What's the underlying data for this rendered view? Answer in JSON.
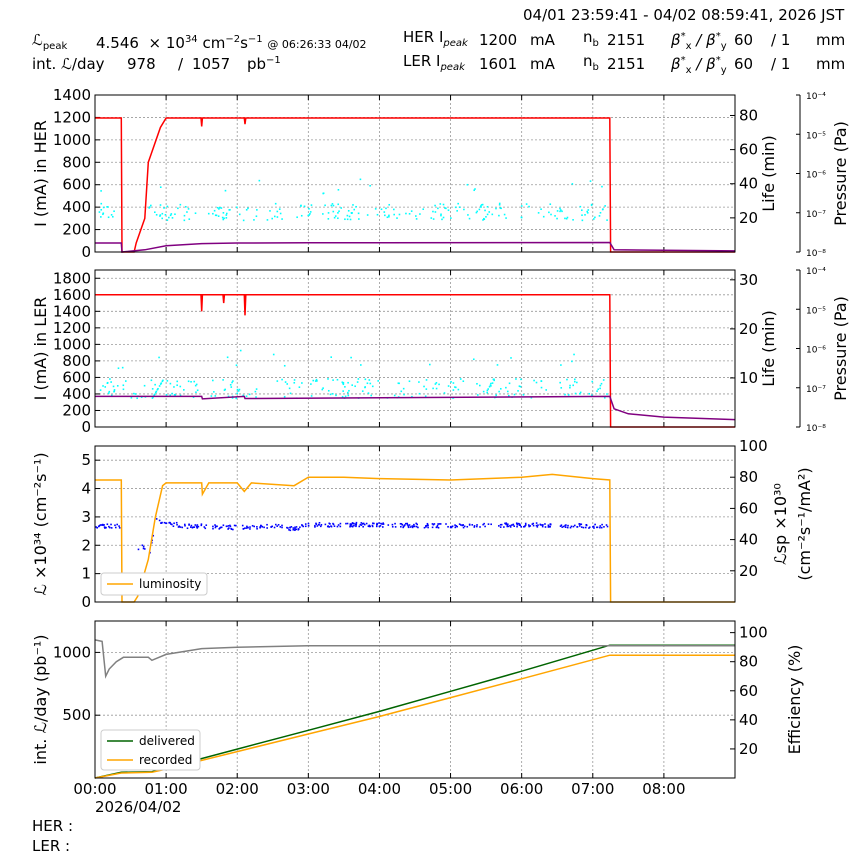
{
  "header": {
    "time_range": "04/01 23:59:41 - 04/02 08:59:41, 2026 JST",
    "lpeak_label": "ℒ",
    "lpeak_sub": "peak",
    "lpeak_value": "4.546",
    "lpeak_mult": "× 10",
    "lpeak_exp": "34",
    "lpeak_unit": "cm",
    "lpeak_unit_exp1": "−2",
    "lpeak_unit2": "s",
    "lpeak_unit_exp2": "−1",
    "lpeak_time": "@ 06:26:33 04/02",
    "intl_label": "int. ℒ/day",
    "intl_value1": "978",
    "intl_sep": "/",
    "intl_value2": "1057",
    "intl_unit": "pb",
    "intl_unit_exp": "−1",
    "her_label": "HER I",
    "her_sub": "peak",
    "her_value": "1200",
    "her_unit": "mA",
    "nb_label": "n",
    "nb_sub": "b",
    "her_nb": "2151",
    "beta_label": "β",
    "beta_sep": "/ β",
    "her_beta_x": "60",
    "her_beta_y": "/ 1",
    "beta_unit": "mm",
    "ler_label": "LER I",
    "ler_sub": "peak",
    "ler_value": "1601",
    "ler_unit": "mA",
    "ler_nb": "2151",
    "ler_beta_x": "60",
    "ler_beta_y": "/ 1"
  },
  "footer": {
    "her": "HER :",
    "ler": "LER :"
  },
  "colors": {
    "current": "#ff0000",
    "life": "#00ffff",
    "pressure": "#800080",
    "luminosity": "#ffa500",
    "specific": "#0000ff",
    "delivered": "#006400",
    "recorded": "#ffa500",
    "efficiency": "#808080"
  },
  "chart_data": [
    {
      "type": "line",
      "ylabel": "I (mA) in HER",
      "ylabel_right": "Life (min)",
      "ylabel_right2": "Pressure (Pa)",
      "ylim": [
        0,
        1400
      ],
      "yticks": [
        "0",
        "200",
        "400",
        "600",
        "800",
        "1000",
        "1200",
        "1400"
      ],
      "ylim_right": [
        0,
        92
      ],
      "yticks_right": [
        "20",
        "40",
        "60",
        "80"
      ],
      "pressure_ticks": [
        "10⁻⁸",
        "10⁻⁷",
        "10⁻⁶",
        "10⁻⁵",
        "10⁻⁴"
      ],
      "series": [
        {
          "key": "current",
          "x": [
            0,
            0.37,
            0.38,
            0.55,
            0.58,
            0.7,
            0.75,
            0.92,
            1.0,
            1.1,
            1.49,
            1.5,
            1.51,
            2.1,
            2.11,
            2.12,
            7.24,
            7.25,
            9.0
          ],
          "y": [
            1195,
            1195,
            0,
            0,
            80,
            300,
            800,
            1110,
            1195,
            1195,
            1195,
            1120,
            1195,
            1195,
            1140,
            1195,
            1195,
            0,
            0
          ]
        },
        {
          "key": "pressure",
          "x": [
            0,
            0.37,
            0.38,
            0.7,
            1.0,
            1.5,
            2.0,
            3.0,
            7.24,
            7.3,
            9.0
          ],
          "y": [
            80,
            80,
            0,
            20,
            55,
            75,
            80,
            82,
            85,
            20,
            10
          ]
        }
      ]
    },
    {
      "type": "line",
      "ylabel": "I (mA) in LER",
      "ylabel_right": "Life (min)",
      "ylabel_right2": "Pressure (Pa)",
      "ylim": [
        0,
        1900
      ],
      "yticks": [
        "0",
        "200",
        "400",
        "600",
        "800",
        "1000",
        "1200",
        "1400",
        "1600",
        "1800"
      ],
      "ylim_right": [
        0,
        32
      ],
      "yticks_right": [
        "10",
        "20",
        "30"
      ],
      "pressure_ticks": [
        "10⁻⁸",
        "10⁻⁷",
        "10⁻⁶",
        "10⁻⁵",
        "10⁻⁴"
      ],
      "series": [
        {
          "key": "current",
          "x": [
            0,
            1.49,
            1.5,
            1.51,
            1.8,
            1.81,
            1.82,
            2.1,
            2.11,
            2.12,
            7.24,
            7.25,
            9.0
          ],
          "y": [
            1600,
            1600,
            1400,
            1600,
            1600,
            1500,
            1600,
            1600,
            1350,
            1600,
            1600,
            0,
            0
          ]
        },
        {
          "key": "pressure",
          "x": [
            0,
            1.5,
            1.51,
            2.1,
            2.11,
            7.24,
            7.3,
            7.5,
            8.0,
            9.0
          ],
          "y": [
            370,
            370,
            340,
            370,
            345,
            370,
            220,
            160,
            120,
            90
          ]
        }
      ]
    },
    {
      "type": "line",
      "ylabel": "ℒ ×10³⁴ (cm⁻²s⁻¹)",
      "ylabel_right": "ℒsp ×10³⁰",
      "ylabel_right_b": "(cm⁻²s⁻¹/mA²)",
      "ylim": [
        0,
        5.5
      ],
      "yticks": [
        "0",
        "1",
        "2",
        "3",
        "4",
        "5"
      ],
      "ylim_right": [
        0,
        100
      ],
      "yticks_right": [
        "20",
        "40",
        "60",
        "80",
        "100"
      ],
      "legend": "luminosity",
      "series": [
        {
          "key": "luminosity",
          "x": [
            0,
            0.37,
            0.38,
            0.55,
            0.6,
            0.75,
            0.85,
            0.95,
            1.0,
            1.5,
            1.51,
            1.6,
            2.0,
            2.1,
            2.2,
            2.8,
            3.0,
            3.5,
            4.0,
            5.0,
            6.0,
            6.43,
            7.0,
            7.24,
            7.25,
            9.0
          ],
          "y": [
            4.3,
            4.3,
            0,
            0,
            0.2,
            1.5,
            3.0,
            4.1,
            4.2,
            4.2,
            3.8,
            4.2,
            4.2,
            3.9,
            4.2,
            4.1,
            4.4,
            4.4,
            4.35,
            4.3,
            4.4,
            4.5,
            4.35,
            4.3,
            0,
            0
          ]
        },
        {
          "key": "specific",
          "x": [
            0,
            0.37,
            0.55,
            0.62,
            0.75,
            0.85,
            0.9,
            1.0,
            1.3,
            1.5,
            2.0,
            2.5,
            2.8,
            3.0,
            4.0,
            5.0,
            6.0,
            7.0,
            7.24
          ],
          "y": [
            2.7,
            2.7,
            1.2,
            2.2,
            1.5,
            3.0,
            2.9,
            2.8,
            2.7,
            2.7,
            2.65,
            2.7,
            2.6,
            2.75,
            2.75,
            2.7,
            2.75,
            2.7,
            2.75
          ]
        }
      ]
    },
    {
      "type": "line",
      "ylabel": "int. ℒ/day (pb⁻¹)",
      "ylabel_right": "Efficiency (%)",
      "ylim": [
        0,
        1250
      ],
      "yticks": [
        "500",
        "1000"
      ],
      "ylim_right": [
        0,
        108
      ],
      "yticks_right": [
        "20",
        "40",
        "60",
        "80",
        "100"
      ],
      "xticks": [
        "00:00",
        "01:00",
        "02:00",
        "03:00",
        "04:00",
        "05:00",
        "06:00",
        "07:00",
        "08:00"
      ],
      "xlim": [
        0,
        9.0
      ],
      "date_label": "2026/04/02",
      "legend": [
        "delivered",
        "recorded"
      ],
      "series": [
        {
          "key": "delivered",
          "x": [
            0,
            0.37,
            0.8,
            1.0,
            2.0,
            3.0,
            4.0,
            5.0,
            6.0,
            7.24,
            9.0
          ],
          "y": [
            0,
            45,
            50,
            80,
            230,
            380,
            530,
            690,
            850,
            1057,
            1057
          ]
        },
        {
          "key": "recorded",
          "x": [
            0,
            0.37,
            0.8,
            1.0,
            2.0,
            3.0,
            4.0,
            5.0,
            6.0,
            7.24,
            9.0
          ],
          "y": [
            0,
            40,
            45,
            70,
            210,
            350,
            490,
            640,
            790,
            978,
            978
          ]
        },
        {
          "key": "efficiency",
          "x": [
            0,
            0.1,
            0.15,
            0.2,
            0.3,
            0.4,
            0.5,
            0.75,
            0.8,
            1.0,
            1.5,
            2.0,
            3.0,
            9.0
          ],
          "y": [
            95,
            94,
            70,
            75,
            80,
            83,
            83,
            83,
            81,
            85,
            89,
            90,
            91,
            91
          ]
        }
      ]
    }
  ]
}
